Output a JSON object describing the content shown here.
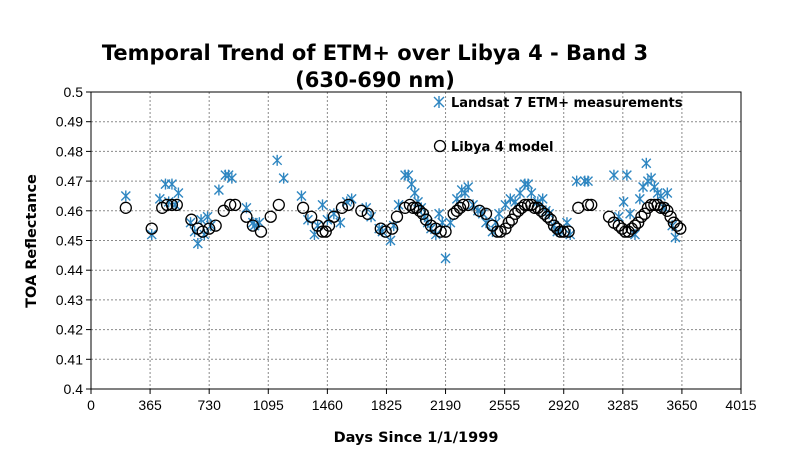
{
  "chart_data": {
    "type": "scatter",
    "title_line1": "Temporal Trend of ETM+ over Libya 4 - Band 3",
    "title_line2": "(630-690 nm)",
    "xlabel": "Days Since 1/1/1999",
    "ylabel": "TOA Reflectance",
    "xlim": [
      0,
      4015
    ],
    "ylim": [
      0.4,
      0.5
    ],
    "x_ticks": [
      "0",
      "365",
      "730",
      "1095",
      "1460",
      "1825",
      "2190",
      "2555",
      "2920",
      "3285",
      "3650",
      "4015"
    ],
    "y_ticks": [
      "0.4",
      "0.41",
      "0.42",
      "0.43",
      "0.44",
      "0.45",
      "0.46",
      "0.47",
      "0.48",
      "0.49",
      "0.5"
    ],
    "grid": true,
    "legend_position": "top-right inside",
    "series": [
      {
        "name": "Landsat 7 ETM+ measurements",
        "marker": "asterisk",
        "color": "#2e86c1",
        "points": [
          [
            215,
            0.465
          ],
          [
            375,
            0.452
          ],
          [
            425,
            0.464
          ],
          [
            460,
            0.469
          ],
          [
            480,
            0.463
          ],
          [
            500,
            0.469
          ],
          [
            520,
            0.462
          ],
          [
            540,
            0.466
          ],
          [
            615,
            0.456
          ],
          [
            640,
            0.453
          ],
          [
            660,
            0.449
          ],
          [
            680,
            0.457
          ],
          [
            700,
            0.452
          ],
          [
            720,
            0.458
          ],
          [
            740,
            0.455
          ],
          [
            790,
            0.467
          ],
          [
            830,
            0.472
          ],
          [
            850,
            0.472
          ],
          [
            870,
            0.471
          ],
          [
            960,
            0.461
          ],
          [
            1000,
            0.456
          ],
          [
            1010,
            0.455
          ],
          [
            1040,
            0.456
          ],
          [
            1150,
            0.477
          ],
          [
            1190,
            0.471
          ],
          [
            1300,
            0.465
          ],
          [
            1340,
            0.457
          ],
          [
            1380,
            0.452
          ],
          [
            1400,
            0.455
          ],
          [
            1430,
            0.462
          ],
          [
            1460,
            0.457
          ],
          [
            1500,
            0.459
          ],
          [
            1540,
            0.456
          ],
          [
            1580,
            0.463
          ],
          [
            1610,
            0.464
          ],
          [
            1700,
            0.461
          ],
          [
            1730,
            0.458
          ],
          [
            1780,
            0.454
          ],
          [
            1800,
            0.453
          ],
          [
            1850,
            0.45
          ],
          [
            1870,
            0.455
          ],
          [
            1900,
            0.462
          ],
          [
            1940,
            0.472
          ],
          [
            1960,
            0.472
          ],
          [
            1980,
            0.469
          ],
          [
            2000,
            0.466
          ],
          [
            2020,
            0.463
          ],
          [
            2040,
            0.461
          ],
          [
            2060,
            0.458
          ],
          [
            2080,
            0.456
          ],
          [
            2100,
            0.454
          ],
          [
            2130,
            0.452
          ],
          [
            2150,
            0.459
          ],
          [
            2170,
            0.456
          ],
          [
            2190,
            0.444
          ],
          [
            2220,
            0.456
          ],
          [
            2260,
            0.464
          ],
          [
            2290,
            0.467
          ],
          [
            2310,
            0.466
          ],
          [
            2330,
            0.468
          ],
          [
            2360,
            0.462
          ],
          [
            2390,
            0.46
          ],
          [
            2420,
            0.459
          ],
          [
            2440,
            0.456
          ],
          [
            2480,
            0.453
          ],
          [
            2500,
            0.456
          ],
          [
            2520,
            0.459
          ],
          [
            2560,
            0.462
          ],
          [
            2590,
            0.464
          ],
          [
            2620,
            0.463
          ],
          [
            2650,
            0.466
          ],
          [
            2680,
            0.469
          ],
          [
            2700,
            0.469
          ],
          [
            2720,
            0.466
          ],
          [
            2760,
            0.463
          ],
          [
            2790,
            0.464
          ],
          [
            2810,
            0.46
          ],
          [
            2830,
            0.459
          ],
          [
            2860,
            0.455
          ],
          [
            2880,
            0.453
          ],
          [
            2900,
            0.453
          ],
          [
            2940,
            0.456
          ],
          [
            2960,
            0.452
          ],
          [
            3000,
            0.47
          ],
          [
            3050,
            0.47
          ],
          [
            3070,
            0.47
          ],
          [
            3230,
            0.472
          ],
          [
            3260,
            0.458
          ],
          [
            3290,
            0.463
          ],
          [
            3310,
            0.472
          ],
          [
            3330,
            0.459
          ],
          [
            3360,
            0.452
          ],
          [
            3390,
            0.464
          ],
          [
            3410,
            0.468
          ],
          [
            3430,
            0.476
          ],
          [
            3440,
            0.47
          ],
          [
            3460,
            0.471
          ],
          [
            3480,
            0.468
          ],
          [
            3500,
            0.466
          ],
          [
            3520,
            0.465
          ],
          [
            3540,
            0.461
          ],
          [
            3560,
            0.466
          ],
          [
            3590,
            0.455
          ],
          [
            3610,
            0.451
          ]
        ]
      },
      {
        "name": "Libya 4 model",
        "marker": "open-circle",
        "color": "#000000",
        "points": [
          [
            215,
            0.461
          ],
          [
            375,
            0.454
          ],
          [
            440,
            0.461
          ],
          [
            470,
            0.462
          ],
          [
            500,
            0.462
          ],
          [
            530,
            0.462
          ],
          [
            620,
            0.457
          ],
          [
            660,
            0.454
          ],
          [
            690,
            0.453
          ],
          [
            730,
            0.454
          ],
          [
            770,
            0.455
          ],
          [
            820,
            0.46
          ],
          [
            860,
            0.462
          ],
          [
            890,
            0.462
          ],
          [
            960,
            0.458
          ],
          [
            1000,
            0.455
          ],
          [
            1050,
            0.453
          ],
          [
            1110,
            0.458
          ],
          [
            1160,
            0.462
          ],
          [
            1310,
            0.461
          ],
          [
            1360,
            0.458
          ],
          [
            1400,
            0.455
          ],
          [
            1430,
            0.453
          ],
          [
            1450,
            0.453
          ],
          [
            1470,
            0.455
          ],
          [
            1500,
            0.458
          ],
          [
            1550,
            0.461
          ],
          [
            1590,
            0.462
          ],
          [
            1670,
            0.46
          ],
          [
            1710,
            0.459
          ],
          [
            1790,
            0.454
          ],
          [
            1820,
            0.453
          ],
          [
            1860,
            0.454
          ],
          [
            1890,
            0.458
          ],
          [
            1940,
            0.461
          ],
          [
            1970,
            0.462
          ],
          [
            1990,
            0.461
          ],
          [
            2010,
            0.461
          ],
          [
            2030,
            0.46
          ],
          [
            2050,
            0.459
          ],
          [
            2070,
            0.457
          ],
          [
            2100,
            0.455
          ],
          [
            2130,
            0.454
          ],
          [
            2160,
            0.453
          ],
          [
            2190,
            0.453
          ],
          [
            2240,
            0.459
          ],
          [
            2260,
            0.46
          ],
          [
            2280,
            0.461
          ],
          [
            2300,
            0.462
          ],
          [
            2330,
            0.462
          ],
          [
            2400,
            0.46
          ],
          [
            2440,
            0.459
          ],
          [
            2480,
            0.455
          ],
          [
            2510,
            0.453
          ],
          [
            2530,
            0.453
          ],
          [
            2560,
            0.454
          ],
          [
            2580,
            0.456
          ],
          [
            2600,
            0.457
          ],
          [
            2620,
            0.459
          ],
          [
            2640,
            0.46
          ],
          [
            2660,
            0.461
          ],
          [
            2680,
            0.462
          ],
          [
            2700,
            0.462
          ],
          [
            2720,
            0.462
          ],
          [
            2740,
            0.461
          ],
          [
            2760,
            0.461
          ],
          [
            2780,
            0.46
          ],
          [
            2800,
            0.459
          ],
          [
            2820,
            0.458
          ],
          [
            2840,
            0.457
          ],
          [
            2860,
            0.455
          ],
          [
            2880,
            0.454
          ],
          [
            2900,
            0.453
          ],
          [
            2920,
            0.453
          ],
          [
            2950,
            0.453
          ],
          [
            3010,
            0.461
          ],
          [
            3070,
            0.462
          ],
          [
            3090,
            0.462
          ],
          [
            3200,
            0.458
          ],
          [
            3230,
            0.456
          ],
          [
            3260,
            0.455
          ],
          [
            3280,
            0.454
          ],
          [
            3300,
            0.453
          ],
          [
            3320,
            0.453
          ],
          [
            3340,
            0.454
          ],
          [
            3360,
            0.455
          ],
          [
            3380,
            0.456
          ],
          [
            3400,
            0.458
          ],
          [
            3420,
            0.459
          ],
          [
            3440,
            0.461
          ],
          [
            3460,
            0.462
          ],
          [
            3480,
            0.462
          ],
          [
            3500,
            0.462
          ],
          [
            3520,
            0.461
          ],
          [
            3540,
            0.461
          ],
          [
            3560,
            0.46
          ],
          [
            3580,
            0.458
          ],
          [
            3600,
            0.456
          ],
          [
            3620,
            0.455
          ],
          [
            3640,
            0.454
          ]
        ]
      }
    ]
  }
}
